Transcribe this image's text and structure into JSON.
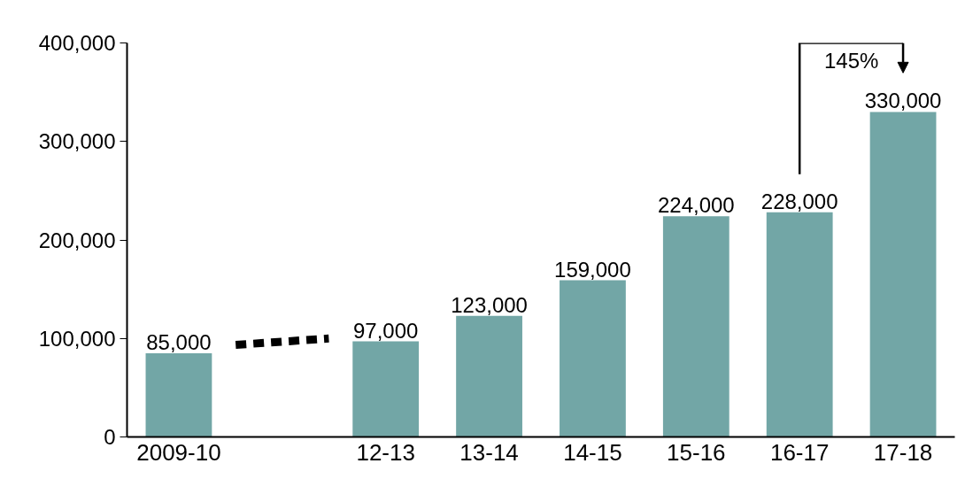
{
  "chart_data": {
    "type": "bar",
    "categories": [
      "2009-10",
      null,
      "12-13",
      "13-14",
      "14-15",
      "15-16",
      "16-17",
      "17-18"
    ],
    "values": [
      85000,
      null,
      97000,
      123000,
      159000,
      224000,
      228000,
      330000
    ],
    "color": "#72a6a6",
    "value_labels": [
      "85,000",
      null,
      "97,000",
      "123,000",
      "159,000",
      "224,000",
      "228,000",
      "330,000"
    ],
    "ylim": [
      0,
      400000
    ],
    "yticks": [
      {
        "value": 0,
        "label": "0"
      },
      {
        "value": 100000,
        "label": "100,000"
      },
      {
        "value": 200000,
        "label": "200,000"
      },
      {
        "value": 300000,
        "label": "300,000"
      },
      {
        "value": 400000,
        "label": "400,000"
      }
    ],
    "grid": false,
    "annotations": [
      "145%"
    ]
  }
}
